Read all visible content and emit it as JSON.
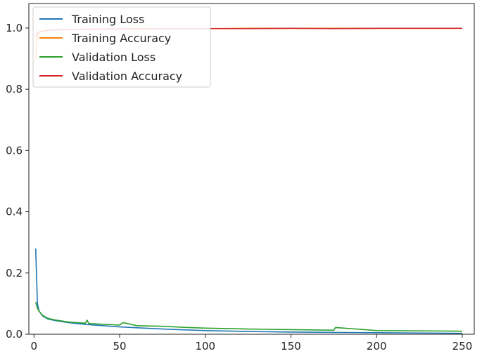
{
  "chart_data": {
    "type": "line",
    "title": "",
    "xlabel": "",
    "ylabel": "",
    "xlim": [
      -3,
      257
    ],
    "ylim": [
      0,
      1.08
    ],
    "xticks": [
      0,
      50,
      100,
      150,
      200,
      250
    ],
    "yticks": [
      0.0,
      0.2,
      0.4,
      0.6,
      0.8,
      1.0
    ],
    "xtick_labels": [
      "0",
      "50",
      "100",
      "150",
      "200",
      "250"
    ],
    "ytick_labels": [
      "0.0",
      "0.2",
      "0.4",
      "0.6",
      "0.8",
      "1.0"
    ],
    "grid": false,
    "legend_position": "upper-left",
    "series": [
      {
        "name": "Training Loss",
        "color": "#1f77b4",
        "x": [
          1,
          2,
          3,
          5,
          8,
          12,
          20,
          30,
          50,
          75,
          100,
          125,
          150,
          175,
          200,
          225,
          250
        ],
        "y": [
          0.28,
          0.1,
          0.075,
          0.06,
          0.05,
          0.045,
          0.038,
          0.032,
          0.024,
          0.017,
          0.012,
          0.009,
          0.007,
          0.006,
          0.005,
          0.004,
          0.003
        ]
      },
      {
        "name": "Training Accuracy",
        "color": "#ff7f0e",
        "x": [
          1,
          2,
          3,
          5,
          8,
          12,
          20,
          30,
          50,
          75,
          100,
          125,
          150,
          175,
          200,
          225,
          250
        ],
        "y": [
          0.9,
          0.975,
          0.985,
          0.99,
          0.992,
          0.994,
          0.995,
          0.996,
          0.997,
          0.998,
          0.998,
          0.999,
          0.999,
          0.999,
          0.999,
          0.999,
          0.999
        ]
      },
      {
        "name": "Validation Loss",
        "color": "#2ca02c",
        "x": [
          1,
          2,
          3,
          5,
          8,
          12,
          20,
          30,
          31,
          32,
          50,
          52,
          60,
          75,
          90,
          100,
          125,
          150,
          175,
          176,
          200,
          225,
          250
        ],
        "y": [
          0.105,
          0.085,
          0.075,
          0.062,
          0.052,
          0.047,
          0.04,
          0.036,
          0.046,
          0.035,
          0.03,
          0.038,
          0.028,
          0.026,
          0.022,
          0.02,
          0.017,
          0.015,
          0.013,
          0.022,
          0.012,
          0.011,
          0.01
        ]
      },
      {
        "name": "Validation Accuracy",
        "color": "#d62728",
        "x": [
          1,
          2,
          5,
          10,
          20,
          30,
          50,
          75,
          100,
          125,
          150,
          175,
          200,
          225,
          250
        ],
        "y": [
          0.97,
          0.985,
          0.99,
          0.993,
          0.995,
          0.996,
          0.997,
          0.998,
          0.998,
          0.998,
          0.999,
          0.998,
          0.999,
          0.999,
          0.999
        ]
      }
    ]
  }
}
